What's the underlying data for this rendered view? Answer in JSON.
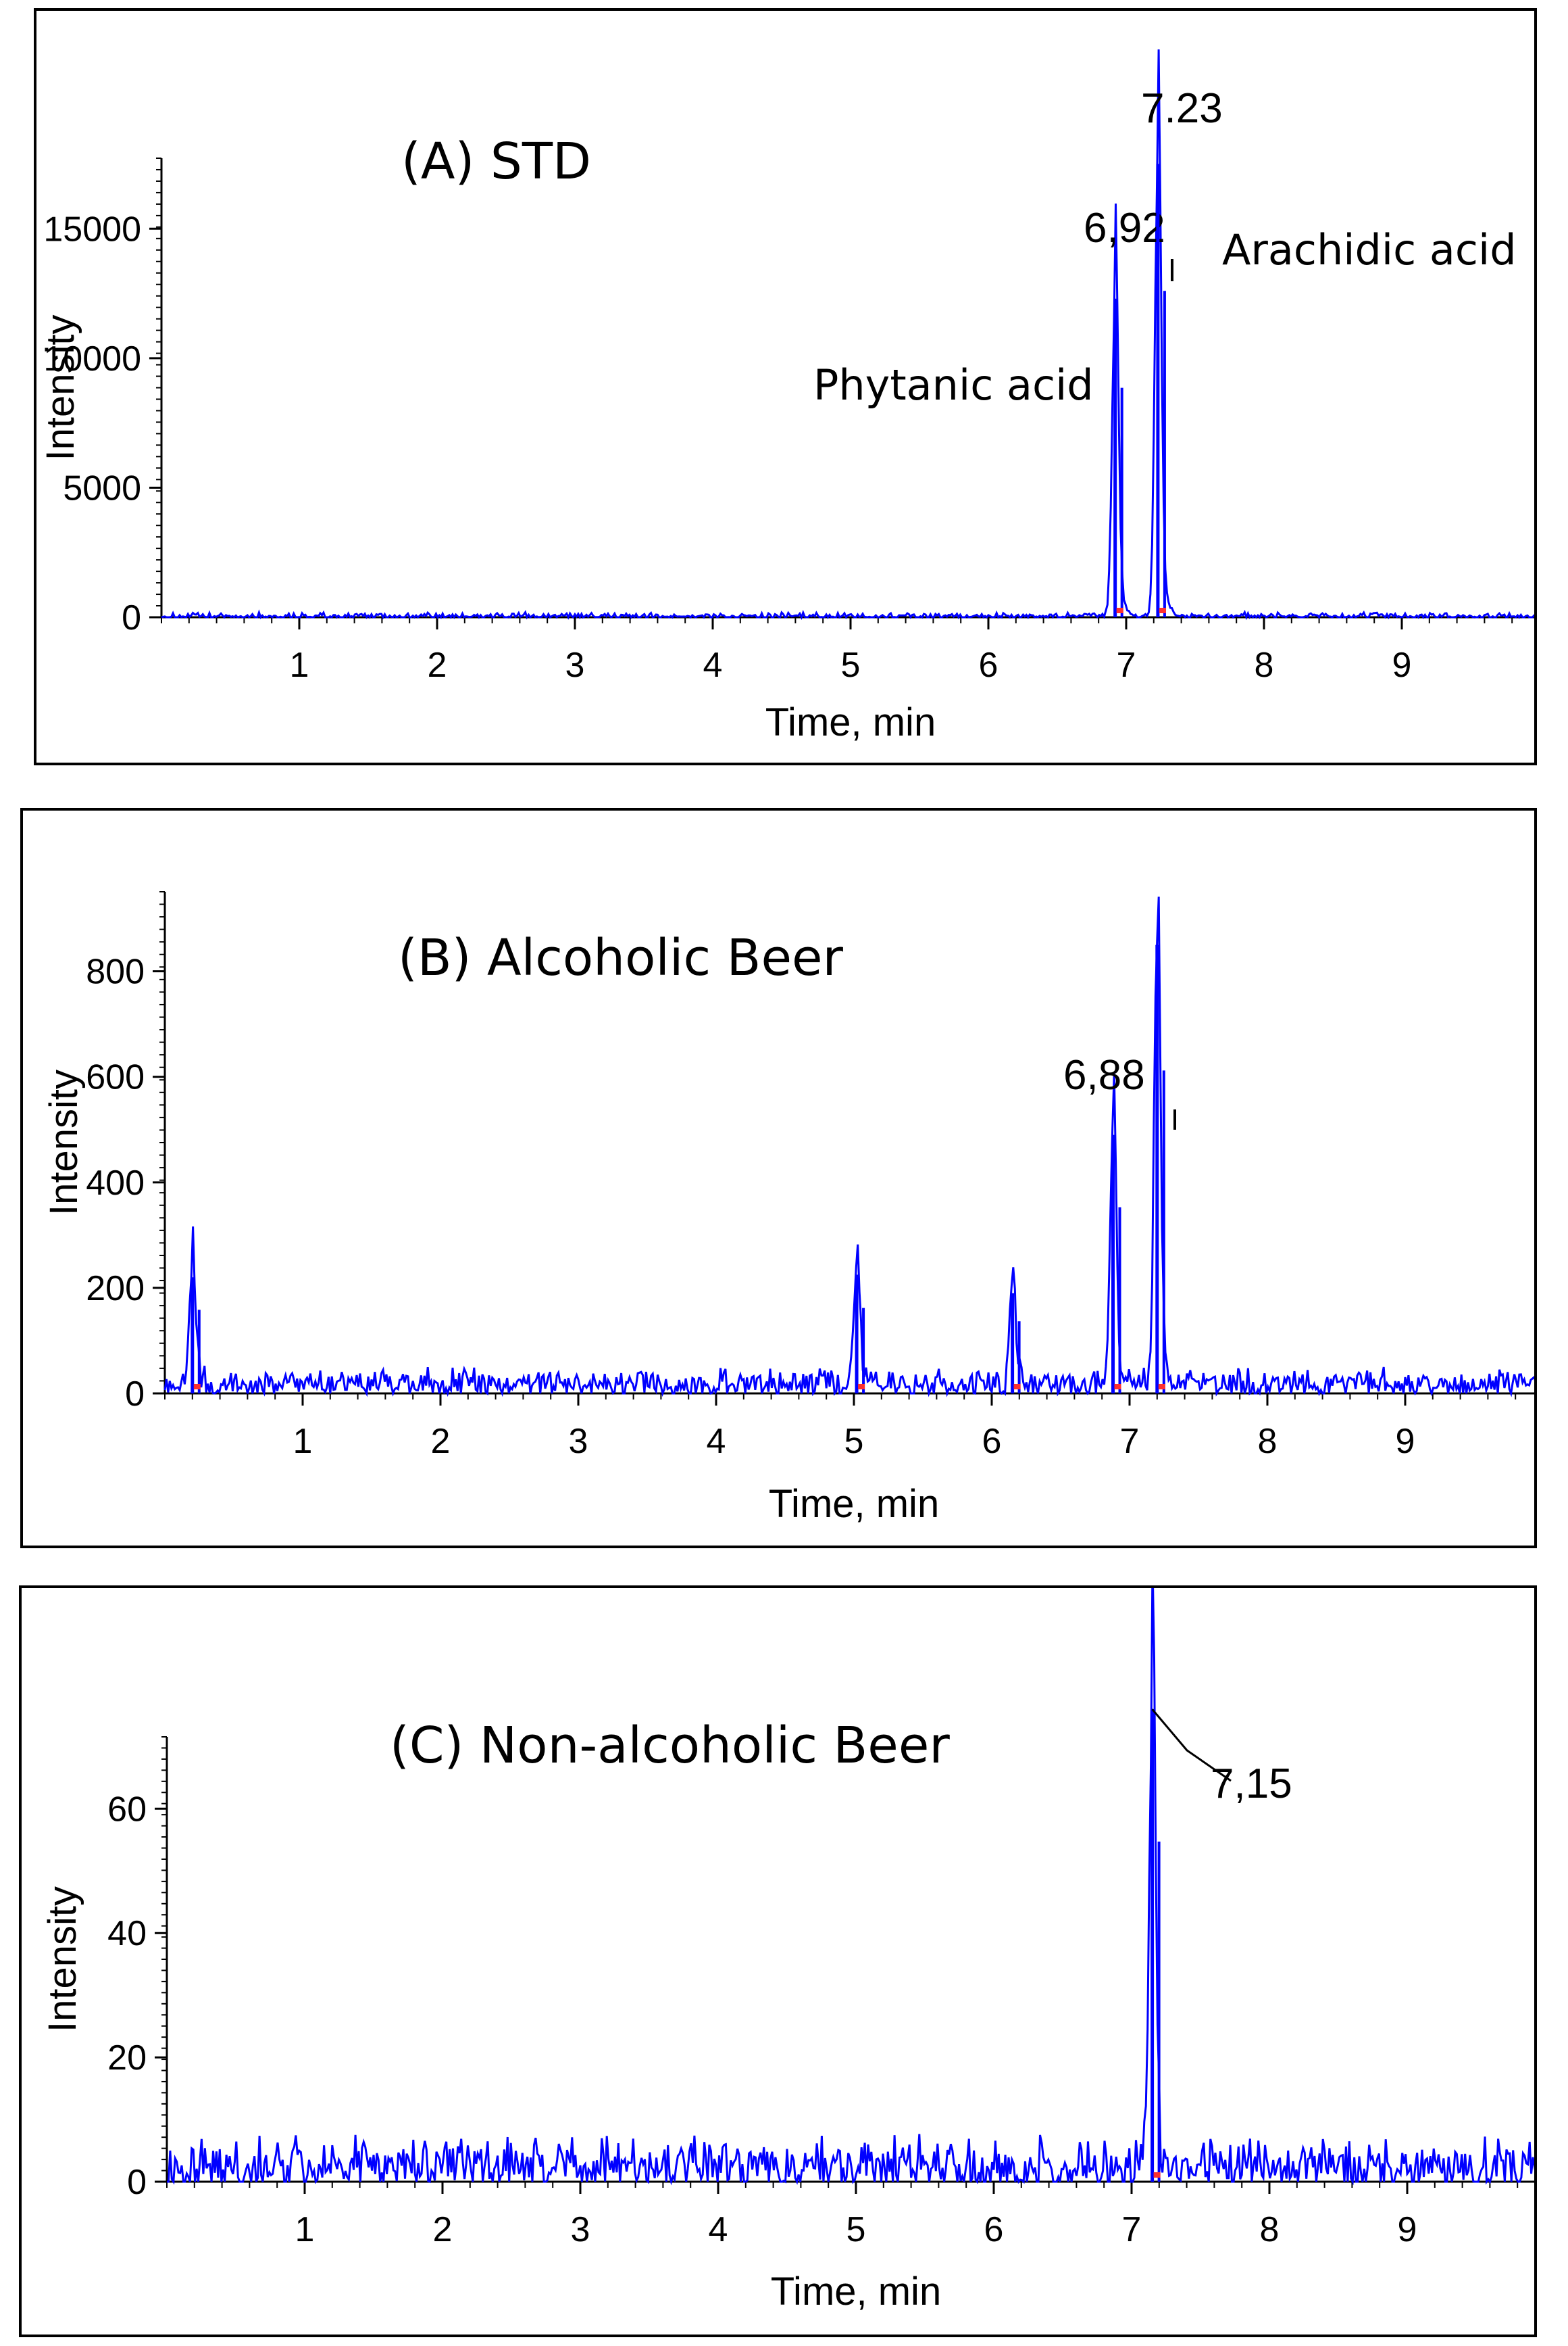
{
  "chart_data": [
    {
      "type": "line",
      "title": "(A) STD",
      "xlabel": "Time, min",
      "ylabel": "Intensity",
      "xlim": [
        0,
        10
      ],
      "ylim": [
        0,
        17800
      ],
      "xticks": [
        "1",
        "2",
        "3",
        "4",
        "5",
        "6",
        "7",
        "8",
        "9"
      ],
      "yticks": [
        "0",
        "5000",
        "10000",
        "15000"
      ],
      "grid": false,
      "series_color": "#0000ff",
      "peaks": [
        {
          "x": 6.92,
          "y": 12300,
          "label": "6,92",
          "compound": "Phytanic acid"
        },
        {
          "x": 7.23,
          "y": 17500,
          "label": "7.23",
          "compound": "Arachidic acid"
        }
      ],
      "annotations": [
        "Phytanic acid",
        "Arachidic acid"
      ],
      "noise_baseline": 40,
      "noise_amplitude": 120
    },
    {
      "type": "line",
      "title": "(B) Alcoholic Beer",
      "xlabel": "Time, min",
      "ylabel": "Intensity",
      "xlim": [
        0,
        10
      ],
      "ylim": [
        0,
        870
      ],
      "xticks": [
        "1",
        "2",
        "3",
        "4",
        "5",
        "6",
        "7",
        "8",
        "9"
      ],
      "yticks": [
        "0",
        "200",
        "400",
        "600",
        "800"
      ],
      "grid": false,
      "series_color": "#0000ff",
      "peaks": [
        {
          "x": 0.2,
          "y": 220,
          "label": ""
        },
        {
          "x": 5.02,
          "y": 225,
          "label": ""
        },
        {
          "x": 6.15,
          "y": 190,
          "label": ""
        },
        {
          "x": 6.88,
          "y": 490,
          "label": "6,88"
        },
        {
          "x": 7.2,
          "y": 850,
          "label": ""
        }
      ],
      "annotations": [],
      "noise_baseline": 18,
      "noise_amplitude": 25
    },
    {
      "type": "line",
      "title": "(C) Non-alcoholic Beer",
      "xlabel": "Time, min",
      "ylabel": "Intensity",
      "xlim": [
        0,
        10
      ],
      "ylim": [
        0,
        77
      ],
      "xticks": [
        "1",
        "2",
        "3",
        "4",
        "5",
        "6",
        "7",
        "8",
        "9"
      ],
      "yticks": [
        "0",
        "20",
        "40",
        "60"
      ],
      "grid": false,
      "series_color": "#0000ff",
      "peaks": [
        {
          "x": 7.15,
          "y": 76,
          "label": "7,15"
        }
      ],
      "annotations": [],
      "noise_baseline": 2.5,
      "noise_amplitude": 4
    }
  ]
}
